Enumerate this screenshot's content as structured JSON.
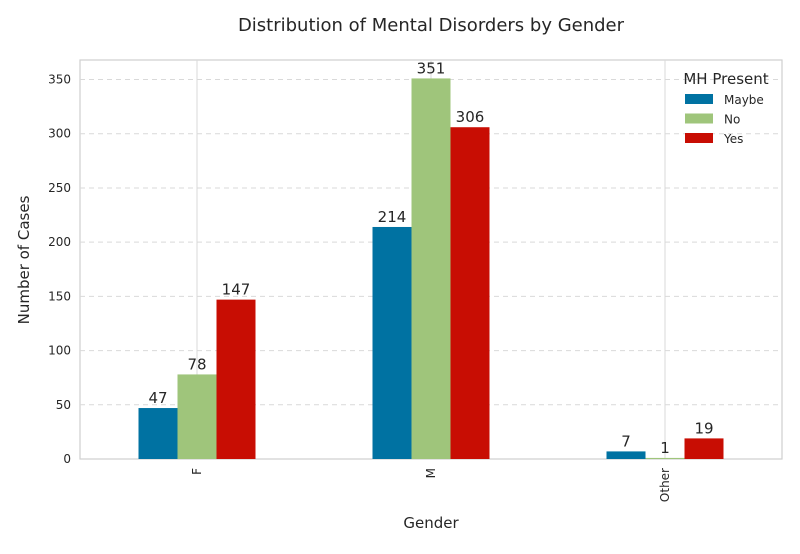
{
  "chart_data": {
    "type": "bar",
    "title": "Distribution of Mental Disorders by Gender",
    "xlabel": "Gender",
    "ylabel": "Number of Cases",
    "categories": [
      "F",
      "M",
      "Other"
    ],
    "series": [
      {
        "name": "Maybe",
        "color": "#0072a2",
        "values": [
          47,
          214,
          7
        ]
      },
      {
        "name": "No",
        "color": "#9fc57b",
        "values": [
          78,
          351,
          1
        ]
      },
      {
        "name": "Yes",
        "color": "#c80d03",
        "values": [
          147,
          306,
          19
        ]
      }
    ],
    "ylim": [
      0,
      368
    ],
    "yticks": [
      0,
      50,
      100,
      150,
      200,
      250,
      300,
      350
    ],
    "grid": true,
    "legend": {
      "title": "MH Present",
      "placement": "top-right"
    },
    "data_labels": true
  }
}
